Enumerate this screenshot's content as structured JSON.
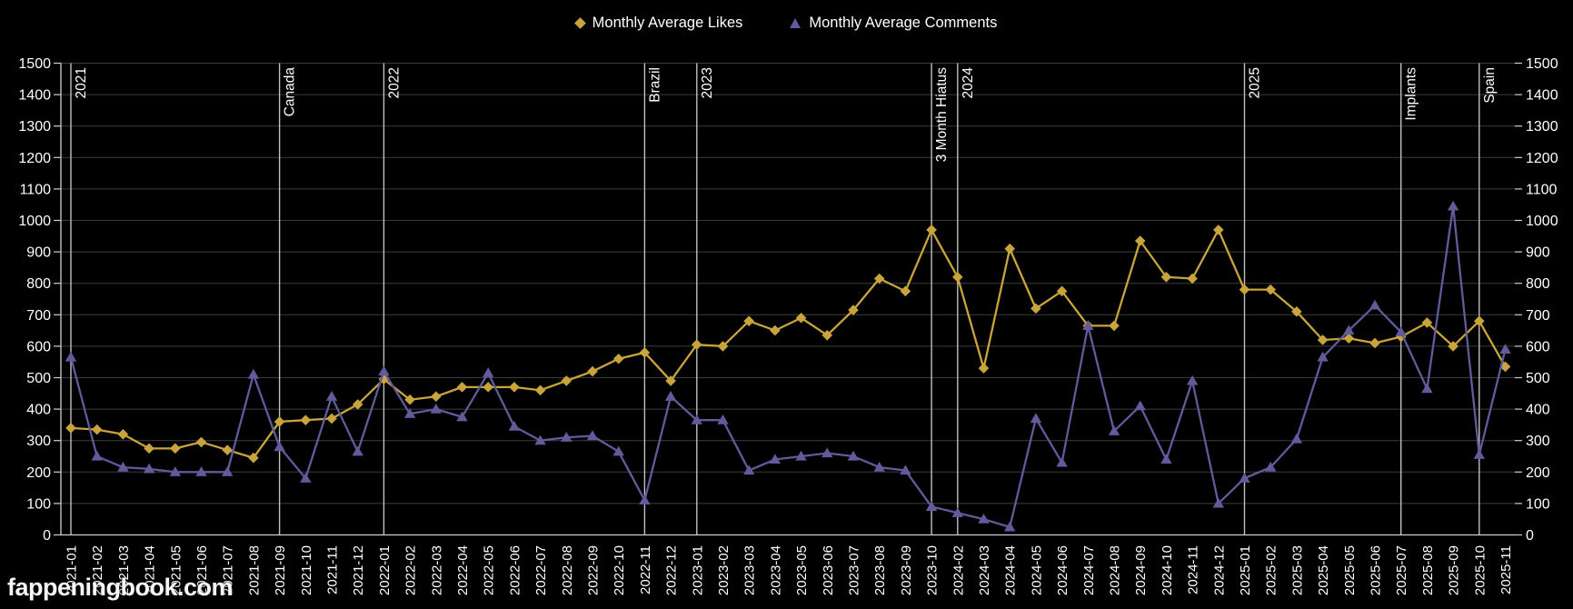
{
  "legend": {
    "likes_label": "Monthly Average Likes",
    "comments_label": "Monthly Average Comments"
  },
  "watermark": "fappeningbook.com",
  "colors": {
    "background": "#000000",
    "likes": "#C9A43C",
    "comments": "#615A9B",
    "grid": "#3C3C3C",
    "annotation_line": "#C0C0C0",
    "axis": "#CFCFCF",
    "text": "#FFFFFF"
  },
  "chart_data": {
    "type": "line",
    "title": "",
    "xlabel": "",
    "ylabel": "",
    "ylim": [
      0,
      1500
    ],
    "ytick_step": 100,
    "grid": true,
    "legend_position": "top",
    "x_label_rotation": 90,
    "note": "x axis skips 2023-11 through 2024-01 (3 month hiatus)",
    "categories": [
      "2021-01",
      "2021-02",
      "2021-03",
      "2021-04",
      "2021-05",
      "2021-06",
      "2021-07",
      "2021-08",
      "2021-09",
      "2021-10",
      "2021-11",
      "2021-12",
      "2022-01",
      "2022-02",
      "2022-03",
      "2022-04",
      "2022-05",
      "2022-06",
      "2022-07",
      "2022-08",
      "2022-09",
      "2022-10",
      "2022-11",
      "2022-12",
      "2023-01",
      "2023-02",
      "2023-03",
      "2023-04",
      "2023-05",
      "2023-06",
      "2023-07",
      "2023-08",
      "2023-09",
      "2023-10",
      "2024-02",
      "2024-03",
      "2024-04",
      "2024-05",
      "2024-06",
      "2024-07",
      "2024-08",
      "2024-09",
      "2024-10",
      "2024-11",
      "2024-12",
      "2025-01",
      "2025-02",
      "2025-03",
      "2025-04",
      "2025-05",
      "2025-06",
      "2025-07",
      "2025-08",
      "2025-09",
      "2025-10",
      "2025-11"
    ],
    "series": [
      {
        "name": "Monthly Average Likes",
        "marker": "diamond",
        "color": "#C9A43C",
        "values": [
          340,
          335,
          320,
          275,
          275,
          295,
          270,
          245,
          360,
          365,
          370,
          415,
          495,
          430,
          440,
          470,
          470,
          470,
          460,
          490,
          520,
          560,
          580,
          490,
          605,
          600,
          680,
          650,
          690,
          635,
          715,
          815,
          775,
          970,
          820,
          530,
          910,
          720,
          775,
          665,
          665,
          935,
          820,
          815,
          970,
          780,
          780,
          710,
          620,
          625,
          610,
          630,
          675,
          600,
          680,
          535
        ]
      },
      {
        "name": "Monthly Average Comments",
        "marker": "triangle",
        "color": "#615A9B",
        "values": [
          565,
          250,
          215,
          210,
          200,
          200,
          200,
          510,
          280,
          180,
          440,
          265,
          520,
          385,
          400,
          375,
          515,
          345,
          300,
          310,
          315,
          265,
          110,
          440,
          365,
          365,
          205,
          240,
          250,
          260,
          250,
          215,
          205,
          90,
          70,
          50,
          25,
          370,
          230,
          665,
          330,
          410,
          240,
          490,
          100,
          180,
          215,
          305,
          565,
          650,
          730,
          645,
          465,
          1045,
          255,
          590
        ]
      }
    ],
    "annotations": [
      {
        "label": "2021",
        "category": "2021-01"
      },
      {
        "label": "Canada",
        "category": "2021-09"
      },
      {
        "label": "2022",
        "category": "2022-01"
      },
      {
        "label": "Brazil",
        "category": "2022-11"
      },
      {
        "label": "2023",
        "category": "2023-01"
      },
      {
        "label": "3 Month Hiatus",
        "category": "2023-10"
      },
      {
        "label": "2024",
        "category": "2024-02"
      },
      {
        "label": "2025",
        "category": "2025-01"
      },
      {
        "label": "Implants",
        "category": "2025-07"
      },
      {
        "label": "Spain",
        "category": "2025-10"
      }
    ]
  }
}
